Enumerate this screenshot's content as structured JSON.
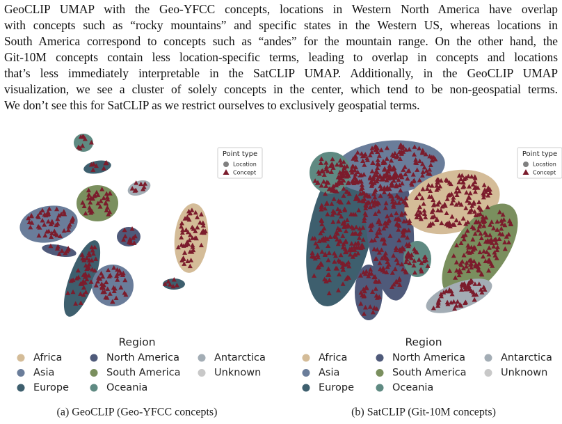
{
  "paragraph": {
    "lines": [
      "GeoCLIP UMAP with the Geo-YFCC concepts, locations in Western North America have overlap",
      "with concepts such as “rocky mountains” and specific states in the Western US, whereas locations in",
      "South America correspond to concepts such as “andes” for the mountain range. On the other hand, the",
      "Git-10M concepts contain less location-specific terms, leading to overlap in concepts and locations",
      "that’s less immediately interpretable in the SatCLIP UMAP. Additionally, in the GeoCLIP UMAP",
      "visualization, we see a cluster of solely concepts in the center, which tend to be non-geospatial terms.",
      "We don’t see this for SatCLIP as we restrict ourselves to exclusively geospatial terms."
    ]
  },
  "figures": [
    {
      "caption": "(a) GeoCLIP (Geo-YFCC concepts)",
      "point_type": {
        "title": "Point type",
        "items": [
          {
            "label": "Location",
            "color": "#808080"
          },
          {
            "label": "Concept",
            "color": "#7b1c2c"
          }
        ]
      },
      "region": {
        "title": "Region",
        "items": [
          {
            "label": "Africa",
            "color": "#d4bc98"
          },
          {
            "label": "North America",
            "color": "#4f5a7a"
          },
          {
            "label": "Antarctica",
            "color": "#a3adb5"
          },
          {
            "label": "Asia",
            "color": "#6a7d9a"
          },
          {
            "label": "South America",
            "color": "#7a8f5e"
          },
          {
            "label": "Unknown",
            "color": "#c8c8c8"
          },
          {
            "label": "Europe",
            "color": "#3e5f6e"
          },
          {
            "label": "Oceania",
            "color": "#5f8a82"
          }
        ]
      }
    },
    {
      "caption": "(b) SatCLIP (Git-10M concepts)",
      "point_type": {
        "title": "Point type",
        "items": [
          {
            "label": "Location",
            "color": "#808080"
          },
          {
            "label": "Concept",
            "color": "#7b1c2c"
          }
        ]
      },
      "region": {
        "title": "Region",
        "items": [
          {
            "label": "Africa",
            "color": "#d4bc98"
          },
          {
            "label": "North America",
            "color": "#4f5a7a"
          },
          {
            "label": "Antarctica",
            "color": "#a3adb5"
          },
          {
            "label": "Asia",
            "color": "#6a7d9a"
          },
          {
            "label": "South America",
            "color": "#7a8f5e"
          },
          {
            "label": "Unknown",
            "color": "#c8c8c8"
          },
          {
            "label": "Europe",
            "color": "#3e5f6e"
          },
          {
            "label": "Oceania",
            "color": "#5f8a82"
          }
        ]
      }
    }
  ]
}
